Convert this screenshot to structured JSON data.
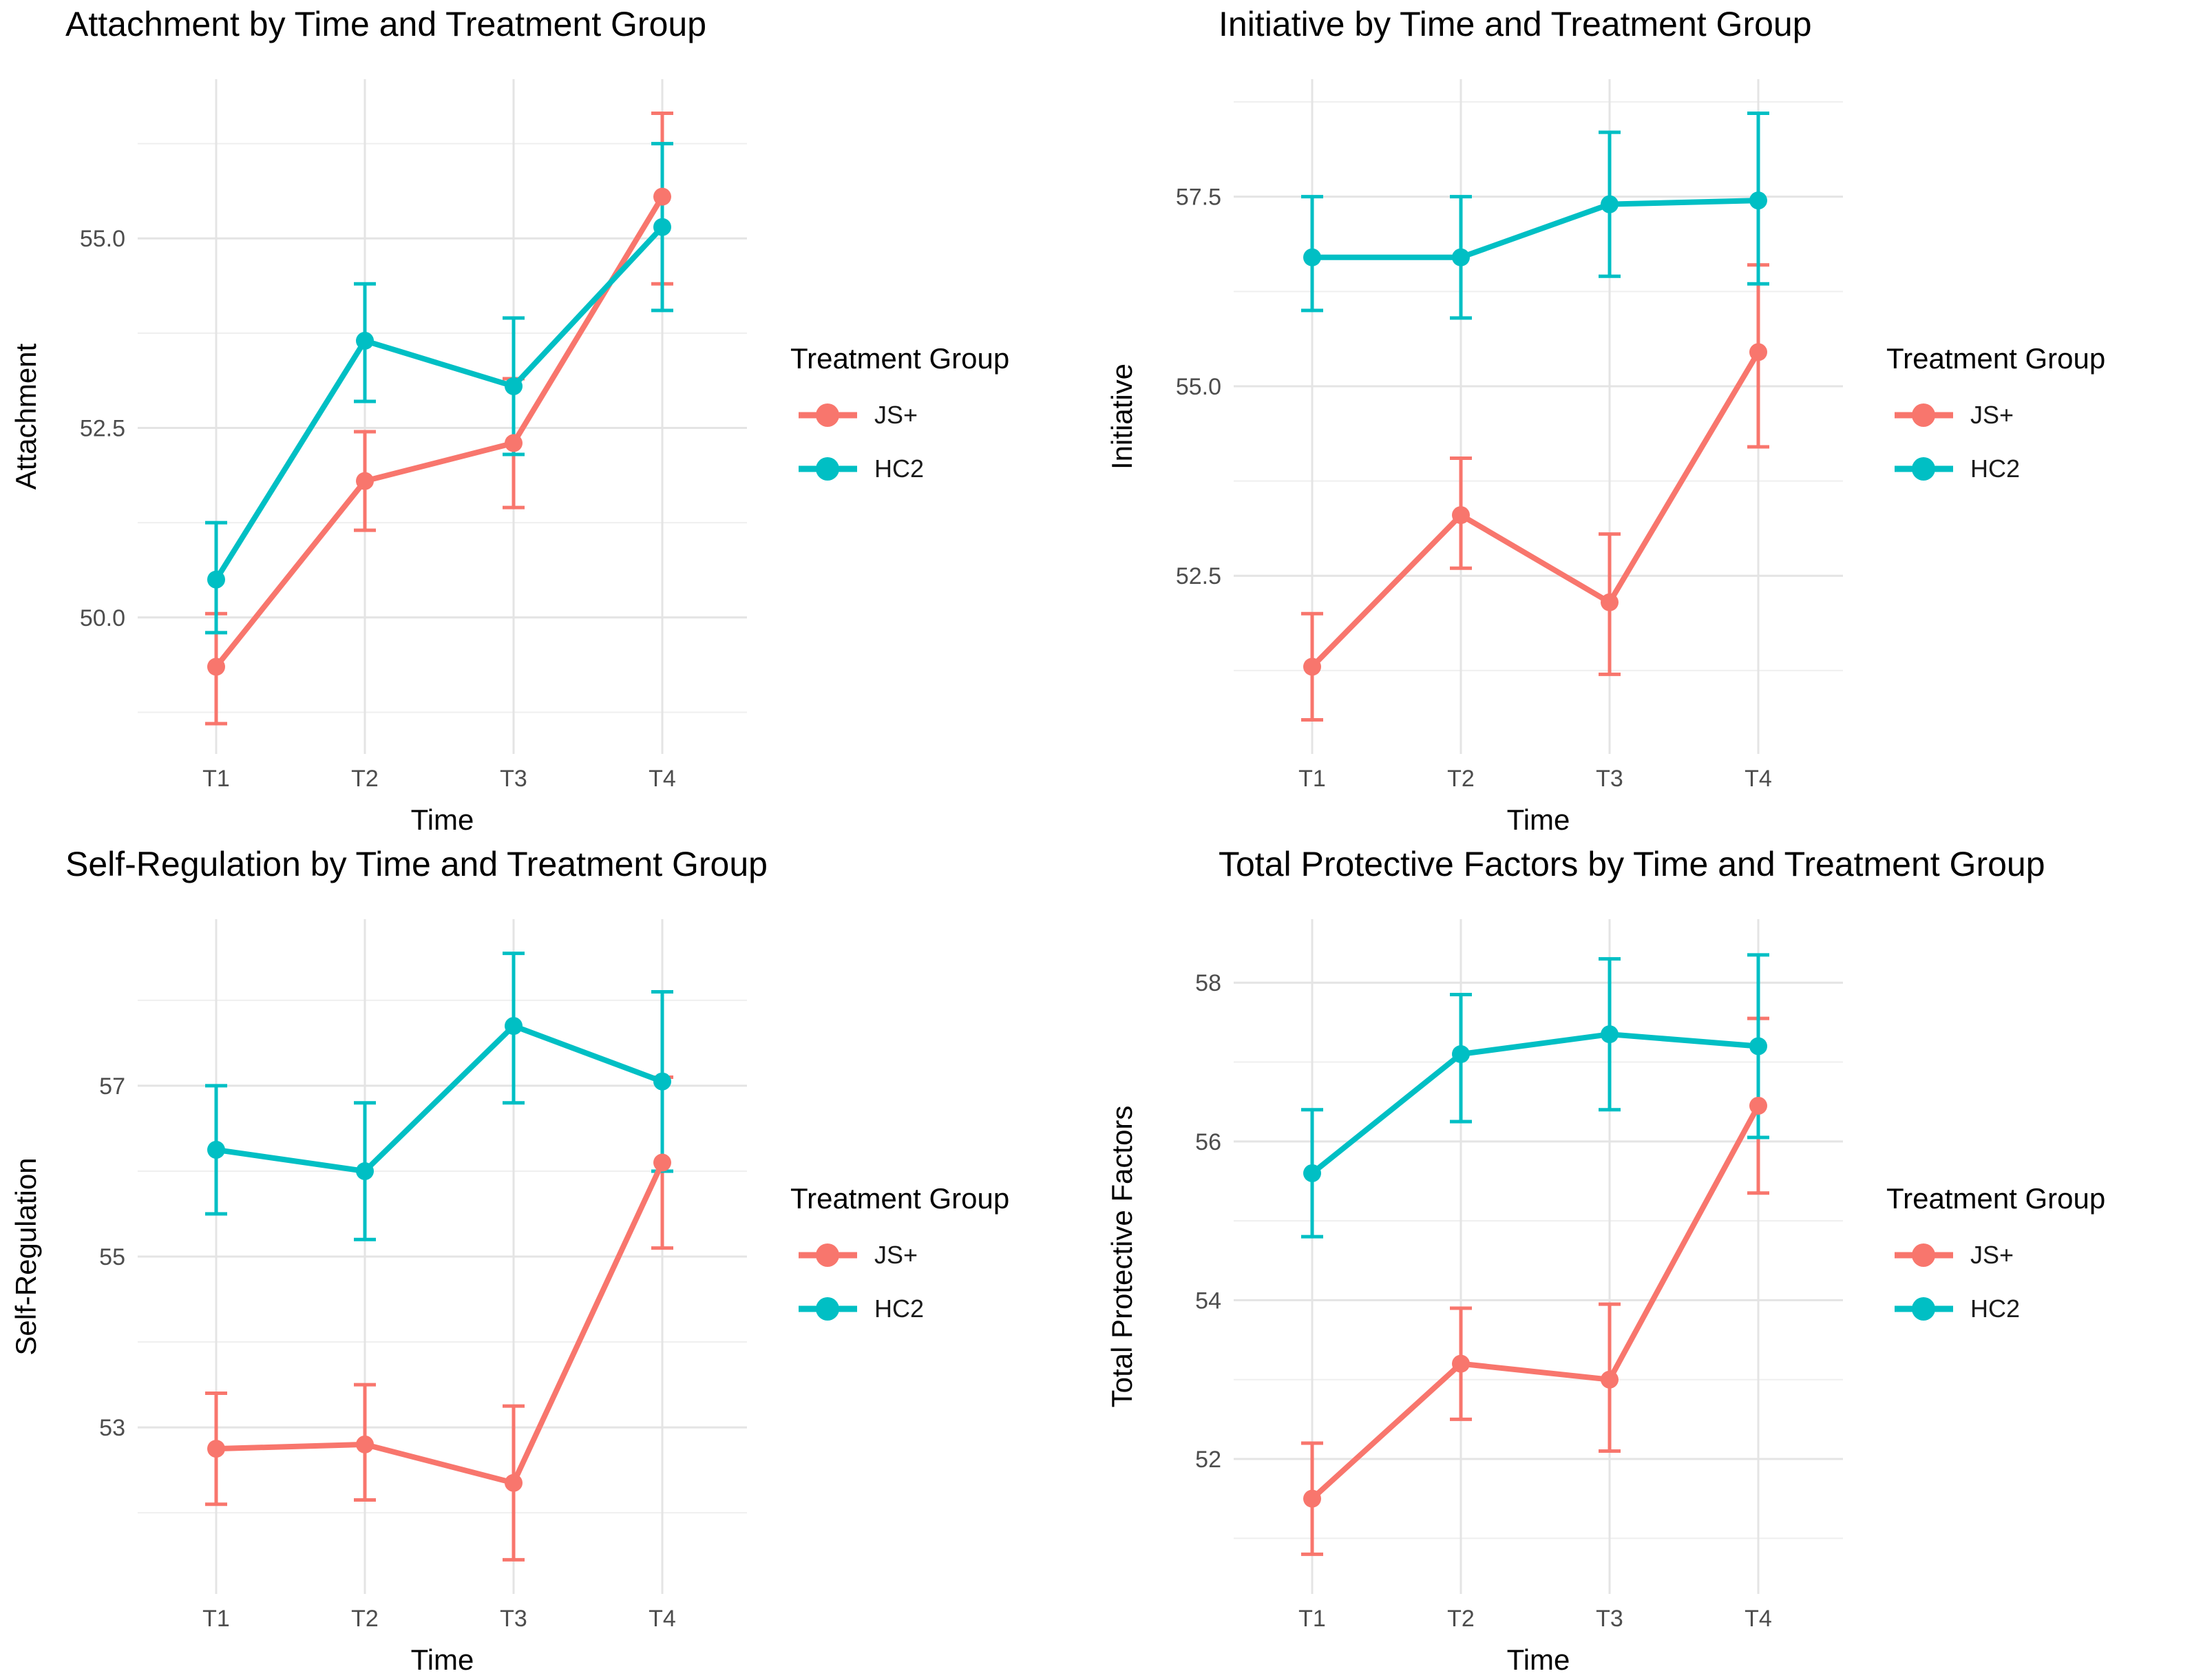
{
  "page": {
    "background": "#ffffff",
    "description": "2x2 panel of longitudinal line charts with error bars comparing two treatment groups across four time points"
  },
  "legend": {
    "title": "Treatment Group",
    "position": "right",
    "entries": [
      {
        "label": "JS+",
        "color": "#F8766D"
      },
      {
        "label": "HC2",
        "color": "#00BFC4"
      }
    ]
  },
  "colors": {
    "js_plus": "#F8766D",
    "hc2": "#00BFC4",
    "grid_major": "#E4E4E4",
    "grid_minor": "#EFEFEF",
    "tick_text": "#4D4D4D",
    "title_text": "#000000"
  },
  "chart_data": [
    {
      "type": "line",
      "title": "Attachment by Time and Treatment Group",
      "xlabel": "Time",
      "ylabel": "Attachment",
      "categories": [
        "T1",
        "T2",
        "T3",
        "T4"
      ],
      "ylim": [
        48.2,
        57.1
      ],
      "yticks": [
        {
          "value": 50.0,
          "label": "50.0"
        },
        {
          "value": 52.5,
          "label": "52.5"
        },
        {
          "value": 55.0,
          "label": "55.0"
        }
      ],
      "yminor": [
        48.75,
        51.25,
        53.75,
        56.25
      ],
      "grid": true,
      "legend_position": "right",
      "series": [
        {
          "name": "JS+",
          "color": "#F8766D",
          "values": [
            49.35,
            51.8,
            52.3,
            55.55
          ],
          "ci_low": [
            48.6,
            51.15,
            51.45,
            54.4
          ],
          "ci_high": [
            50.05,
            52.45,
            53.15,
            56.65
          ]
        },
        {
          "name": "HC2",
          "color": "#00BFC4",
          "values": [
            50.5,
            53.65,
            53.05,
            55.15
          ],
          "ci_low": [
            49.8,
            52.85,
            52.15,
            54.05
          ],
          "ci_high": [
            51.25,
            54.4,
            53.95,
            56.25
          ]
        }
      ]
    },
    {
      "type": "line",
      "title": "Initiative by Time and Treatment Group",
      "xlabel": "Time",
      "ylabel": "Initiative",
      "categories": [
        "T1",
        "T2",
        "T3",
        "T4"
      ],
      "ylim": [
        50.15,
        59.05
      ],
      "yticks": [
        {
          "value": 52.5,
          "label": "52.5"
        },
        {
          "value": 55.0,
          "label": "55.0"
        },
        {
          "value": 57.5,
          "label": "57.5"
        }
      ],
      "yminor": [
        51.25,
        53.75,
        56.25,
        58.75
      ],
      "grid": true,
      "legend_position": "right",
      "series": [
        {
          "name": "JS+",
          "color": "#F8766D",
          "values": [
            51.3,
            53.3,
            52.15,
            55.45
          ],
          "ci_low": [
            50.6,
            52.6,
            51.2,
            54.2
          ],
          "ci_high": [
            52.0,
            54.05,
            53.05,
            56.6
          ]
        },
        {
          "name": "HC2",
          "color": "#00BFC4",
          "values": [
            56.7,
            56.7,
            57.4,
            57.45
          ],
          "ci_low": [
            56.0,
            55.9,
            56.45,
            56.35
          ],
          "ci_high": [
            57.5,
            57.5,
            58.35,
            58.6
          ]
        }
      ]
    },
    {
      "type": "line",
      "title": "Self-Regulation by Time and Treatment Group",
      "xlabel": "Time",
      "ylabel": "Self-Regulation",
      "categories": [
        "T1",
        "T2",
        "T3",
        "T4"
      ],
      "ylim": [
        51.05,
        58.95
      ],
      "yticks": [
        {
          "value": 53,
          "label": "53"
        },
        {
          "value": 55,
          "label": "55"
        },
        {
          "value": 57,
          "label": "57"
        }
      ],
      "yminor": [
        52,
        54,
        56,
        58
      ],
      "grid": true,
      "legend_position": "right",
      "series": [
        {
          "name": "JS+",
          "color": "#F8766D",
          "values": [
            52.75,
            52.8,
            52.35,
            56.1
          ],
          "ci_low": [
            52.1,
            52.15,
            51.45,
            55.1
          ],
          "ci_high": [
            53.4,
            53.5,
            53.25,
            57.1
          ]
        },
        {
          "name": "HC2",
          "color": "#00BFC4",
          "values": [
            56.25,
            56.0,
            57.7,
            57.05
          ],
          "ci_low": [
            55.5,
            55.2,
            56.8,
            56.0
          ],
          "ci_high": [
            57.0,
            56.8,
            58.55,
            58.1
          ]
        }
      ]
    },
    {
      "type": "line",
      "title": "Total Protective Factors by Time and Treatment Group",
      "xlabel": "Time",
      "ylabel": "Total Protective Factors",
      "categories": [
        "T1",
        "T2",
        "T3",
        "T4"
      ],
      "ylim": [
        50.3,
        58.8
      ],
      "yticks": [
        {
          "value": 52,
          "label": "52"
        },
        {
          "value": 54,
          "label": "54"
        },
        {
          "value": 56,
          "label": "56"
        },
        {
          "value": 58,
          "label": "58"
        }
      ],
      "yminor": [
        51,
        53,
        55,
        57
      ],
      "grid": true,
      "legend_position": "right",
      "series": [
        {
          "name": "JS+",
          "color": "#F8766D",
          "values": [
            51.5,
            53.2,
            53.0,
            56.45
          ],
          "ci_low": [
            50.8,
            52.5,
            52.1,
            55.35
          ],
          "ci_high": [
            52.2,
            53.9,
            53.95,
            57.55
          ]
        },
        {
          "name": "HC2",
          "color": "#00BFC4",
          "values": [
            55.6,
            57.1,
            57.35,
            57.2
          ],
          "ci_low": [
            54.8,
            56.25,
            56.4,
            56.05
          ],
          "ci_high": [
            56.4,
            57.85,
            58.3,
            58.35
          ]
        }
      ]
    }
  ]
}
